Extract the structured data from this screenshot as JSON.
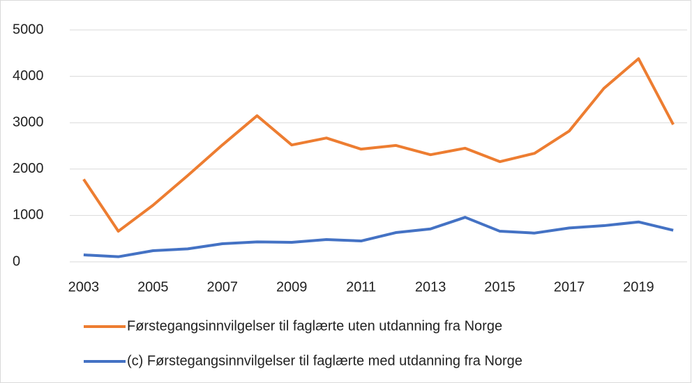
{
  "chart_data": {
    "type": "line",
    "x": [
      2003,
      2004,
      2005,
      2006,
      2007,
      2008,
      2009,
      2010,
      2011,
      2012,
      2013,
      2014,
      2015,
      2016,
      2017,
      2018,
      2019,
      2020
    ],
    "series": [
      {
        "name": "Førstegangsinnvilgelser til faglærte uten utdanning fra Norge",
        "color": "#ed7d31",
        "values": [
          1780,
          660,
          1220,
          1860,
          2520,
          3150,
          2520,
          2670,
          2430,
          2510,
          2310,
          2450,
          2160,
          2340,
          2820,
          3740,
          4380,
          2960
        ]
      },
      {
        "name": "(c) Førstegangsinnvilgelser til faglærte med utdanning fra Norge",
        "color": "#4472c4",
        "values": [
          150,
          110,
          240,
          280,
          390,
          430,
          420,
          480,
          450,
          630,
          710,
          960,
          660,
          620,
          730,
          780,
          860,
          680
        ]
      }
    ],
    "xlim": [
      2002.6,
      2020.4
    ],
    "xticks": [
      2003,
      2005,
      2007,
      2009,
      2011,
      2013,
      2015,
      2017,
      2019
    ],
    "ylim": [
      0,
      5000
    ],
    "yticks": [
      0,
      1000,
      2000,
      3000,
      4000,
      5000
    ],
    "grid": true,
    "legend": "bottom"
  }
}
